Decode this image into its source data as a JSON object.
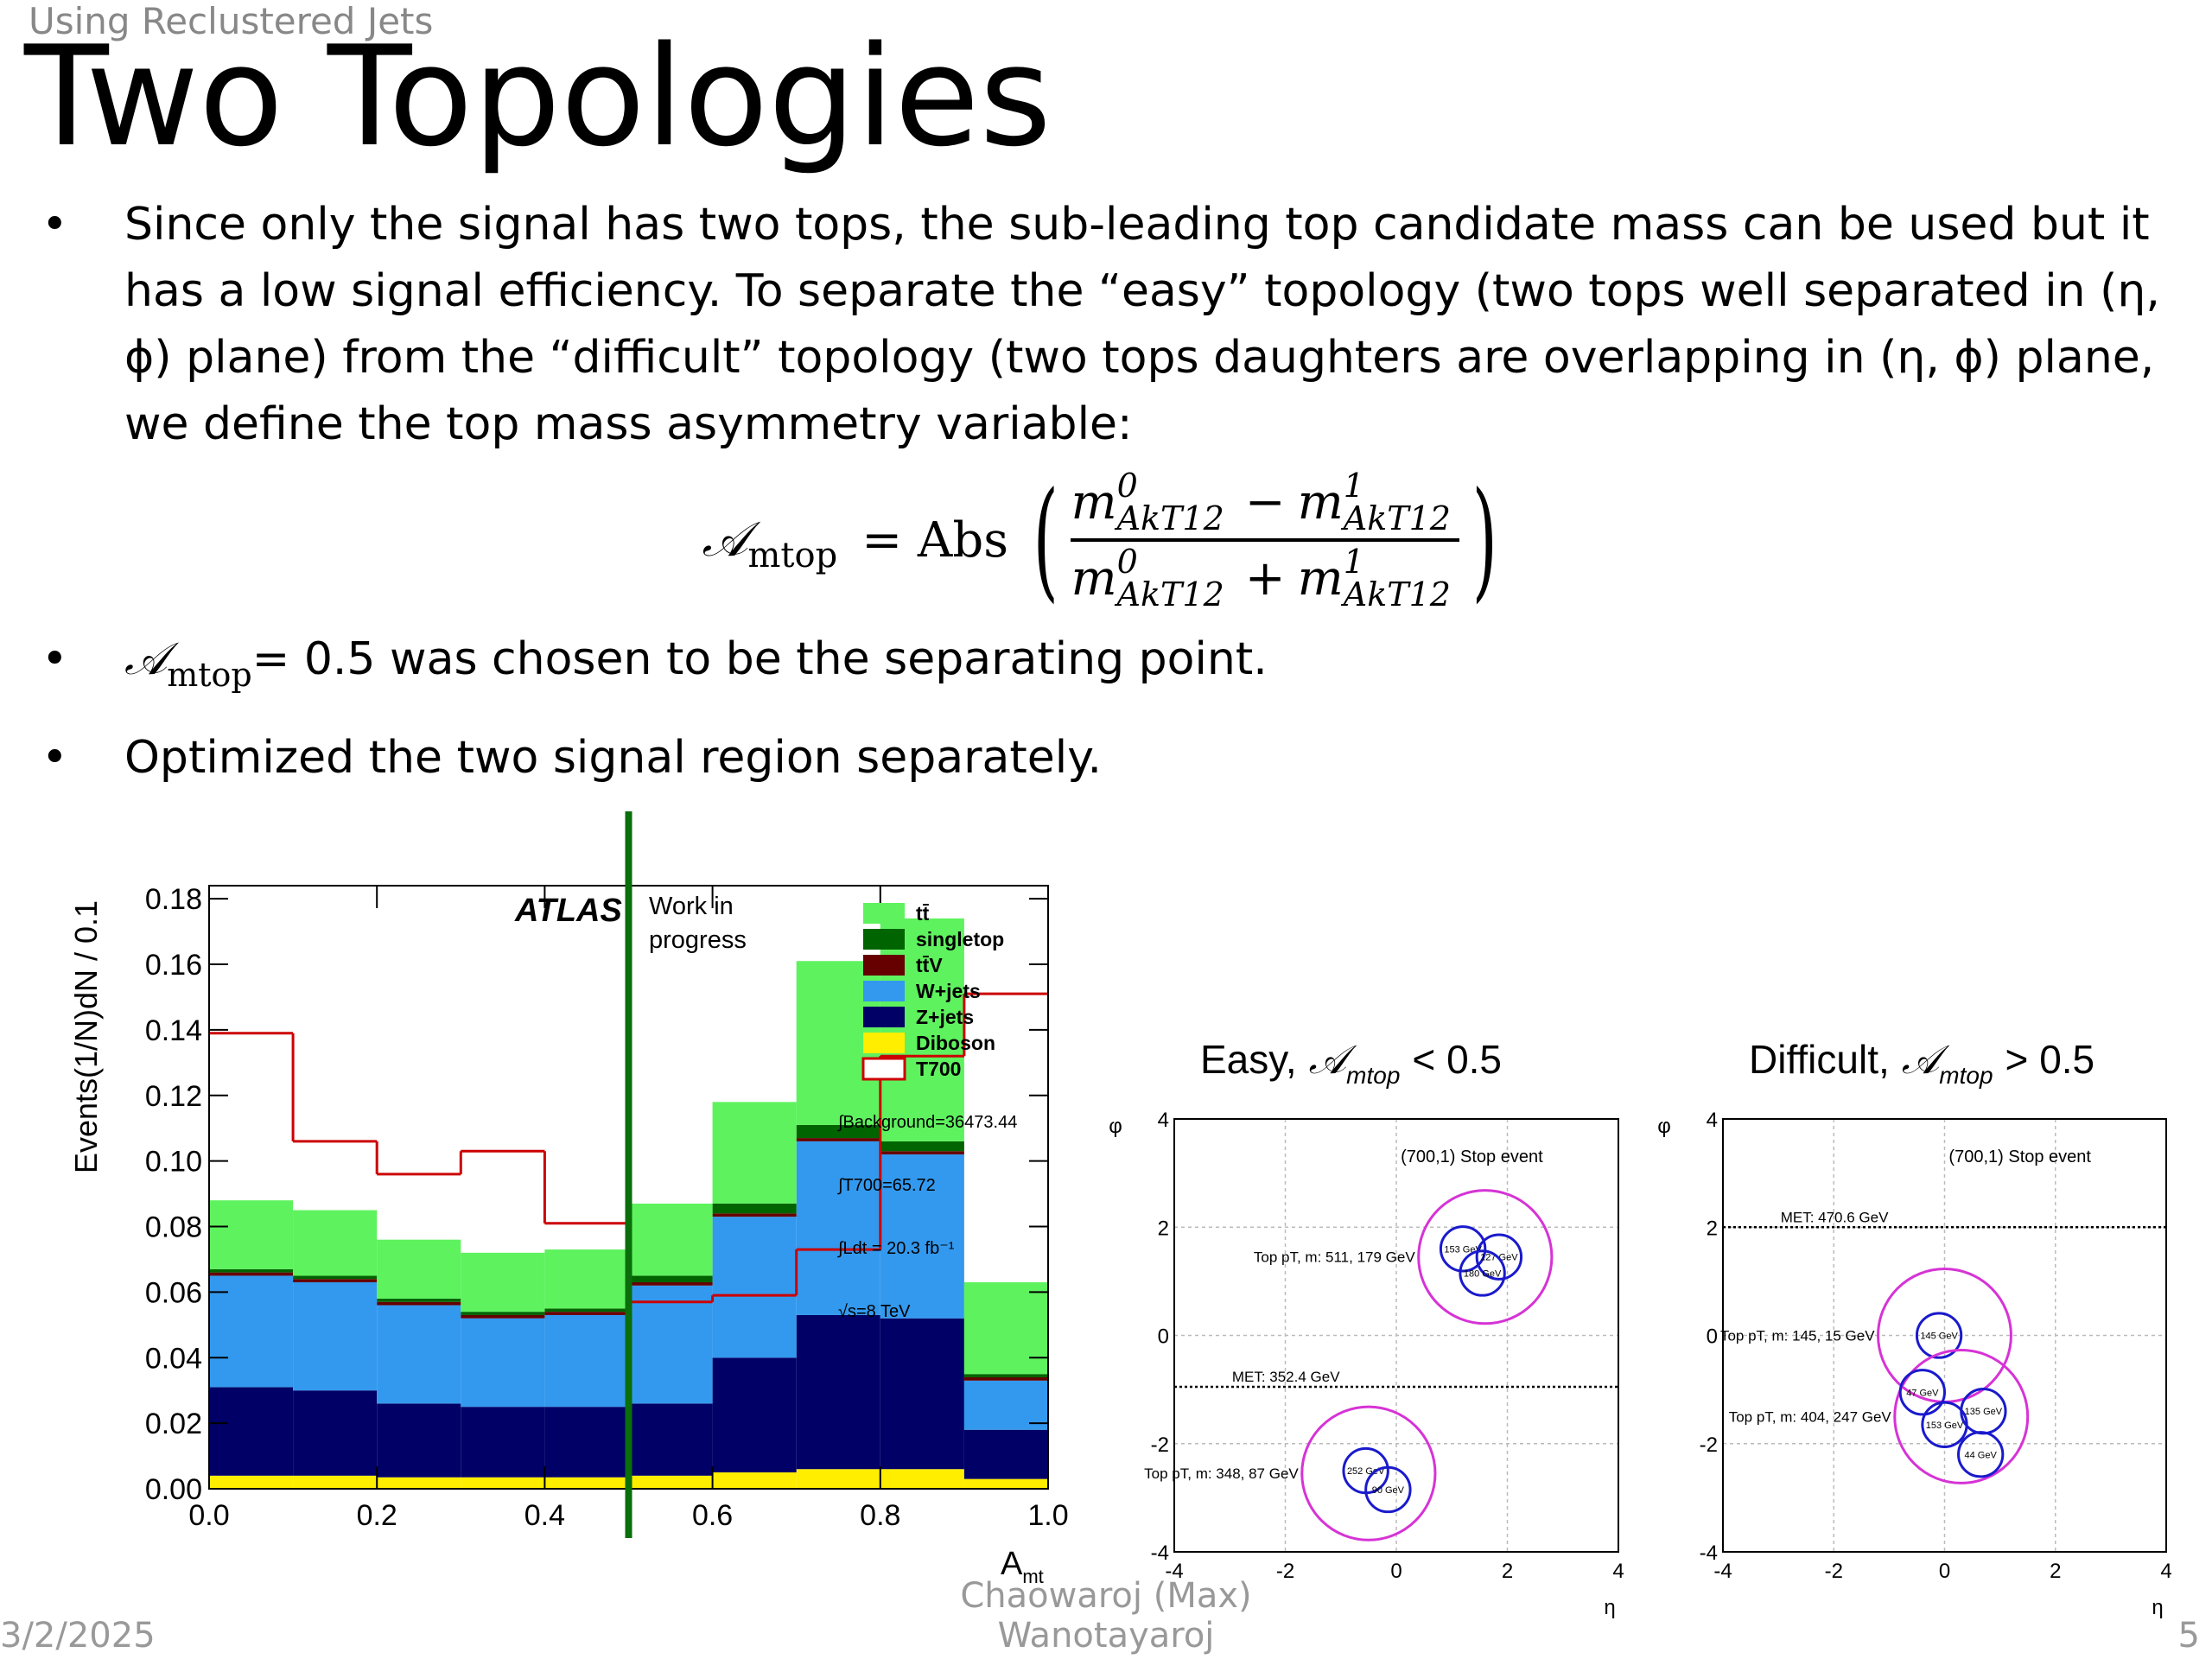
{
  "header": {
    "subtitle": "Using Reclustered Jets",
    "title": "Two Topologies"
  },
  "bullets": [
    {
      "text": "Since only the signal has two tops, the sub-leading top candidate mass can be used but it has a low signal efficiency. To separate the “easy” topology (two tops well separated in (η, ϕ) plane) from the “difficult” topology (two tops daughters are overlapping in (η, ϕ) plane, we define the top mass asymmetry variable:"
    },
    {
      "symbol": "𝒜",
      "sub": "mtop",
      "text": "= 0.5 was chosen to be the separating point."
    },
    {
      "text": "Optimized the two signal region separately."
    }
  ],
  "formula": {
    "symbol": "𝒜",
    "sub": "mtop",
    "op": "= Abs",
    "m": "m",
    "sup0": "0",
    "sup1": "1",
    "jet": "AkT12",
    "minus": "−",
    "plus": "+",
    "open": "(",
    "close": ")"
  },
  "chart_data": [
    {
      "type": "histogram",
      "ylabel": "Events(1/N)dN / 0.1",
      "xlabel": "A",
      "xlabel_sub": "mt",
      "bins": [
        0,
        0.1,
        0.2,
        0.3,
        0.4,
        0.5,
        0.6,
        0.7,
        0.8,
        0.9,
        1.0
      ],
      "xlim": [
        0,
        1
      ],
      "ylim": [
        0,
        0.184
      ],
      "xticks": [
        {
          "value": 0,
          "label": "0.0"
        },
        0.2,
        0.4,
        0.6,
        0.8,
        {
          "value": 1,
          "label": "1.0"
        }
      ],
      "yticks": [
        {
          "value": 0,
          "label": "0.00"
        },
        0.02,
        0.04,
        0.06,
        0.08,
        {
          "value": 0.1,
          "label": "0.10"
        },
        0.12,
        0.14,
        0.16,
        0.18
      ],
      "series": [
        {
          "name": "tt̄",
          "color": "#5ef25e",
          "values": [
            0.021,
            0.02,
            0.018,
            0.018,
            0.018,
            0.022,
            0.031,
            0.05,
            0.068,
            0.028
          ]
        },
        {
          "name": "singletop",
          "color": "#006400",
          "values": [
            0.001,
            0.001,
            0.001,
            0.001,
            0.001,
            0.002,
            0.003,
            0.004,
            0.003,
            0.001
          ]
        },
        {
          "name": "tt̄V",
          "color": "#660000",
          "values": [
            0.001,
            0.001,
            0.001,
            0.001,
            0.001,
            0.001,
            0.001,
            0.001,
            0.001,
            0.001
          ]
        },
        {
          "name": "W+jets",
          "color": "#3399ee",
          "values": [
            0.034,
            0.033,
            0.03,
            0.027,
            0.028,
            0.036,
            0.043,
            0.053,
            0.05,
            0.015
          ]
        },
        {
          "name": "Z+jets",
          "color": "#000066",
          "values": [
            0.027,
            0.026,
            0.0225,
            0.0215,
            0.0215,
            0.022,
            0.035,
            0.047,
            0.046,
            0.015
          ]
        },
        {
          "name": "Diboson",
          "color": "#ffee00",
          "values": [
            0.004,
            0.004,
            0.0035,
            0.0035,
            0.0035,
            0.004,
            0.005,
            0.006,
            0.006,
            0.003
          ]
        },
        {
          "name": "T700",
          "color": "#cc0000",
          "style": "step",
          "values": [
            0.139,
            0.106,
            0.096,
            0.103,
            0.081,
            0.057,
            0.059,
            0.073,
            0.132,
            0.151
          ]
        }
      ],
      "vline": {
        "value": 0.5,
        "color": "#0a6e0a"
      },
      "atlas": "ATLAS",
      "status": [
        "Work in",
        "progress"
      ],
      "annotations": [
        "∫Background=36473.44",
        "∫T700=65.72",
        "∫Ldt = 20.3 fb⁻¹",
        "√s=8 TeV"
      ]
    },
    {
      "type": "event",
      "title": "Easy,",
      "title_symbol": "𝒜",
      "title_sub": "mtop",
      "title_rel": "< 0.5",
      "label": "(700,1) Stop event",
      "xlabel": "η",
      "ylabel": "φ",
      "xlim": [
        -4,
        4
      ],
      "ylim": [
        -4,
        4
      ],
      "xticks": [
        -4,
        -2,
        0,
        2,
        4
      ],
      "yticks": [
        -4,
        -2,
        0,
        2,
        4
      ],
      "grid": true,
      "top_color": "#d633d6",
      "subjet_color": "#1a1acc",
      "met": {
        "label": "MET: 352.4 GeV",
        "value": -0.95
      },
      "tops": [
        {
          "label": "Top pT, m: 511, 179 GeV",
          "eta": 1.6,
          "phi": 1.45,
          "r": 1.2,
          "subjets": [
            {
              "label": "153 GeV",
              "eta": 1.2,
              "phi": 1.6,
              "r": 0.4
            },
            {
              "label": "127 GeV",
              "eta": 1.85,
              "phi": 1.45,
              "r": 0.4
            },
            {
              "label": "180 GeV",
              "eta": 1.55,
              "phi": 1.15,
              "r": 0.4
            }
          ]
        },
        {
          "label": "Top pT, m: 348, 87 GeV",
          "eta": -0.5,
          "phi": -2.55,
          "r": 1.2,
          "subjets": [
            {
              "label": "252 GeV",
              "eta": -0.55,
              "phi": -2.5,
              "r": 0.4
            },
            {
              "label": "90 GeV",
              "eta": -0.15,
              "phi": -2.85,
              "r": 0.4
            }
          ]
        }
      ]
    },
    {
      "type": "event",
      "title": "Difficult,",
      "title_symbol": "𝒜",
      "title_sub": "mtop",
      "title_rel": "> 0.5",
      "label": "(700,1) Stop event",
      "xlabel": "η",
      "ylabel": "φ",
      "xlim": [
        -4,
        4
      ],
      "ylim": [
        -4,
        4
      ],
      "xticks": [
        -4,
        -2,
        0,
        2,
        4
      ],
      "yticks": [
        -4,
        -2,
        0,
        2,
        4
      ],
      "grid": true,
      "top_color": "#d633d6",
      "subjet_color": "#1a1acc",
      "met": {
        "label": "MET: 470.6 GeV",
        "value": 2.0
      },
      "tops": [
        {
          "label": "Top pT, m: 145, 15 GeV",
          "eta": 0,
          "phi": 0,
          "r": 1.2,
          "subjets": [
            {
              "label": "145 GeV",
              "eta": -0.1,
              "phi": 0,
              "r": 0.4
            }
          ]
        },
        {
          "label": "Top pT, m: 404, 247 GeV",
          "eta": 0.3,
          "phi": -1.5,
          "r": 1.2,
          "subjets": [
            {
              "label": "47 GeV",
              "eta": -0.4,
              "phi": -1.05,
              "r": 0.4
            },
            {
              "label": "153 GeV",
              "eta": 0,
              "phi": -1.65,
              "r": 0.4
            },
            {
              "label": "135 GeV",
              "eta": 0.7,
              "phi": -1.4,
              "r": 0.4
            },
            {
              "label": "44 GeV",
              "eta": 0.65,
              "phi": -2.2,
              "r": 0.4
            }
          ]
        }
      ]
    }
  ],
  "footer": {
    "date": "3/2/2025",
    "author": "Chaowaroj (Max) Wanotayaroj",
    "page": "5"
  }
}
